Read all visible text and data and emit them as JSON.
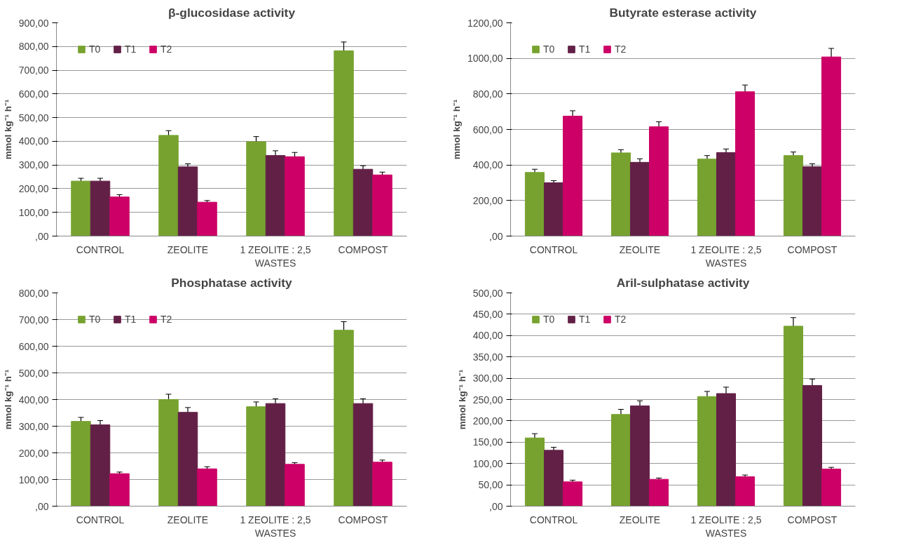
{
  "chart_data": [
    {
      "type": "bar",
      "title": "β-glucosidase activity",
      "ylabel": "mmol kg⁻¹ h⁻¹",
      "categories": [
        "CONTROL",
        "ZEOLITE",
        "1 ZEOLITE : 2,5 WASTES",
        "COMPOST"
      ],
      "ylim": [
        0,
        900
      ],
      "yticks": [
        {
          "value": 0,
          "label": ",00"
        },
        {
          "value": 100,
          "label": "100,00"
        },
        {
          "value": 200,
          "label": "200,00"
        },
        {
          "value": 300,
          "label": "300,00"
        },
        {
          "value": 400,
          "label": "400,00"
        },
        {
          "value": 500,
          "label": "500,00"
        },
        {
          "value": 600,
          "label": "600,00"
        },
        {
          "value": 700,
          "label": "700,00"
        },
        {
          "value": 800,
          "label": "800,00"
        },
        {
          "value": 900,
          "label": "900,00"
        }
      ],
      "grid": "y",
      "legend": "top left",
      "series": [
        {
          "name": "T0",
          "color": "#77a22f",
          "values": [
            232,
            425,
            398,
            782
          ],
          "errors": [
            12,
            20,
            22,
            37
          ]
        },
        {
          "name": "T1",
          "color": "#632047",
          "values": [
            232,
            292,
            340,
            282
          ],
          "errors": [
            12,
            13,
            20,
            15
          ]
        },
        {
          "name": "T2",
          "color": "#cc0066",
          "values": [
            165,
            143,
            335,
            258
          ],
          "errors": [
            10,
            7,
            18,
            12
          ]
        }
      ]
    },
    {
      "type": "bar",
      "title": "Butyrate esterase activity",
      "ylabel": "mmol kg⁻¹ h⁻¹",
      "categories": [
        "CONTROL",
        "ZEOLITE",
        "1 ZEOLITE : 2,5 WASTES",
        "COMPOST"
      ],
      "ylim": [
        0,
        1200
      ],
      "yticks": [
        {
          "value": 0,
          "label": ",00"
        },
        {
          "value": 200,
          "label": "200,00"
        },
        {
          "value": 400,
          "label": "400,00"
        },
        {
          "value": 600,
          "label": "600,00"
        },
        {
          "value": 800,
          "label": "800,00"
        },
        {
          "value": 1000,
          "label": "1000,00"
        },
        {
          "value": 1200,
          "label": "1200,00"
        }
      ],
      "grid": "y",
      "legend": "top left",
      "series": [
        {
          "name": "T0",
          "color": "#77a22f",
          "values": [
            358,
            468,
            433,
            453
          ],
          "errors": [
            18,
            18,
            20,
            20
          ]
        },
        {
          "name": "T1",
          "color": "#632047",
          "values": [
            300,
            415,
            470,
            390
          ],
          "errors": [
            12,
            20,
            20,
            17
          ]
        },
        {
          "name": "T2",
          "color": "#cc0066",
          "values": [
            675,
            615,
            812,
            1008
          ],
          "errors": [
            30,
            28,
            38,
            48
          ]
        }
      ]
    },
    {
      "type": "bar",
      "title": "Phosphatase activity",
      "ylabel": "mmol kg⁻¹ h⁻¹",
      "categories": [
        "CONTROL",
        "ZEOLITE",
        "1 ZEOLITE : 2,5 WASTES",
        "COMPOST"
      ],
      "ylim": [
        0,
        800
      ],
      "yticks": [
        {
          "value": 0,
          "label": ",00"
        },
        {
          "value": 100,
          "label": "100,00"
        },
        {
          "value": 200,
          "label": "200,00"
        },
        {
          "value": 300,
          "label": "300,00"
        },
        {
          "value": 400,
          "label": "400,00"
        },
        {
          "value": 500,
          "label": "500,00"
        },
        {
          "value": 600,
          "label": "600,00"
        },
        {
          "value": 700,
          "label": "700,00"
        },
        {
          "value": 800,
          "label": "800,00"
        }
      ],
      "grid": "y",
      "legend": "top left",
      "series": [
        {
          "name": "T0",
          "color": "#77a22f",
          "values": [
            318,
            400,
            373,
            660
          ],
          "errors": [
            15,
            20,
            18,
            32
          ]
        },
        {
          "name": "T1",
          "color": "#632047",
          "values": [
            305,
            352,
            385,
            385
          ],
          "errors": [
            16,
            18,
            18,
            18
          ]
        },
        {
          "name": "T2",
          "color": "#cc0066",
          "values": [
            122,
            140,
            157,
            165
          ],
          "errors": [
            6,
            8,
            6,
            8
          ]
        }
      ]
    },
    {
      "type": "bar",
      "title": "Aril-sulphatase activity",
      "ylabel": "mmol kg⁻¹ h⁻¹",
      "categories": [
        "CONTROL",
        "ZEOLITE",
        "1 ZEOLITE : 2,5 WASTES",
        "COMPOST"
      ],
      "ylim": [
        0,
        500
      ],
      "yticks": [
        {
          "value": 0,
          "label": ",00"
        },
        {
          "value": 50,
          "label": "50,00"
        },
        {
          "value": 100,
          "label": "100,00"
        },
        {
          "value": 150,
          "label": "150,00"
        },
        {
          "value": 200,
          "label": "200,00"
        },
        {
          "value": 250,
          "label": "250,00"
        },
        {
          "value": 300,
          "label": "300,00"
        },
        {
          "value": 350,
          "label": "350,00"
        },
        {
          "value": 400,
          "label": "400,00"
        },
        {
          "value": 450,
          "label": "450,00"
        },
        {
          "value": 500,
          "label": "500,00"
        }
      ],
      "grid": "y",
      "legend": "top left",
      "series": [
        {
          "name": "T0",
          "color": "#77a22f",
          "values": [
            160,
            215,
            257,
            422
          ],
          "errors": [
            10,
            12,
            12,
            20
          ]
        },
        {
          "name": "T1",
          "color": "#632047",
          "values": [
            131,
            235,
            264,
            283
          ],
          "errors": [
            7,
            12,
            15,
            15
          ]
        },
        {
          "name": "T2",
          "color": "#cc0066",
          "values": [
            57,
            63,
            69,
            87
          ],
          "errors": [
            4,
            3,
            4,
            4
          ]
        }
      ]
    }
  ]
}
